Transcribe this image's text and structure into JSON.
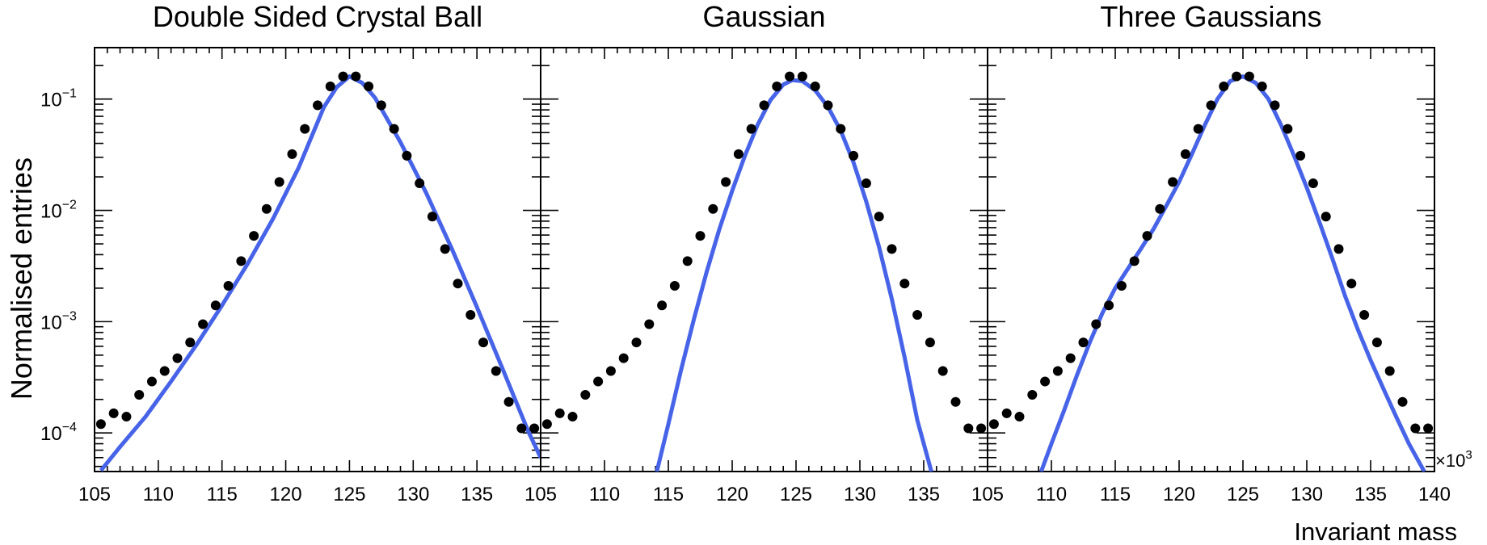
{
  "colors": {
    "fit": "#4763e8",
    "points": "#000000",
    "frame": "#000000"
  },
  "axes": {
    "ylabel": "Normalised entries",
    "xlabel": "Invariant mass",
    "x_multiplier_text": "×10",
    "x_multiplier_exp": "3",
    "xlim": [
      105,
      140
    ],
    "ylim": [
      4.5e-05,
      0.29
    ],
    "yscale": "log",
    "ytick_base": "10",
    "yticks": [
      {
        "value": 0.0001,
        "exp": "−4"
      },
      {
        "value": 0.001,
        "exp": "−3"
      },
      {
        "value": 0.01,
        "exp": "−2"
      },
      {
        "value": 0.1,
        "exp": "−1"
      }
    ],
    "xtick_labels_first_panels": [
      "105",
      "110",
      "115",
      "120",
      "125",
      "130",
      "135"
    ],
    "xtick_labels_last_panel": [
      "105",
      "110",
      "115",
      "120",
      "125",
      "130",
      "135",
      "140"
    ]
  },
  "chart_data": [
    {
      "type": "scatter",
      "title": "Double Sided Crystal Ball",
      "series": [
        {
          "kind": "points",
          "x": [
            105.5,
            106.5,
            107.5,
            108.5,
            109.5,
            110.5,
            111.5,
            112.5,
            113.5,
            114.5,
            115.5,
            116.5,
            117.5,
            118.5,
            119.5,
            120.5,
            121.5,
            122.5,
            123.5,
            124.5,
            125.5,
            126.5,
            127.5,
            128.5,
            129.5,
            130.5,
            131.5,
            132.5,
            133.5,
            134.5,
            135.5,
            136.5,
            137.5,
            138.5,
            139.5
          ],
          "y": [
            0.00012,
            0.00015,
            0.00014,
            0.00022,
            0.00029,
            0.00036,
            0.00047,
            0.00065,
            0.00095,
            0.0014,
            0.0021,
            0.0035,
            0.0059,
            0.0103,
            0.018,
            0.032,
            0.054,
            0.088,
            0.13,
            0.16,
            0.16,
            0.13,
            0.088,
            0.054,
            0.031,
            0.0175,
            0.0088,
            0.0045,
            0.0022,
            0.00115,
            0.00065,
            0.00036,
            0.00019,
            0.00011,
            0.00011
          ]
        },
        {
          "kind": "fit",
          "model": "double-sided crystal ball",
          "x": [
            105.5,
            107,
            109,
            111,
            113,
            115,
            117,
            119,
            121,
            123,
            124,
            125,
            126,
            127,
            129,
            131,
            133,
            135,
            137,
            139,
            140
          ],
          "y": [
            4.6e-05,
            7.5e-05,
            0.00014,
            0.00029,
            0.00062,
            0.0014,
            0.0033,
            0.0084,
            0.024,
            0.085,
            0.128,
            0.16,
            0.14,
            0.103,
            0.041,
            0.0145,
            0.0046,
            0.00135,
            0.00038,
            0.000105,
            6e-05
          ]
        }
      ]
    },
    {
      "type": "scatter",
      "title": "Gaussian",
      "series": [
        {
          "kind": "points",
          "x": [
            105.5,
            106.5,
            107.5,
            108.5,
            109.5,
            110.5,
            111.5,
            112.5,
            113.5,
            114.5,
            115.5,
            116.5,
            117.5,
            118.5,
            119.5,
            120.5,
            121.5,
            122.5,
            123.5,
            124.5,
            125.5,
            126.5,
            127.5,
            128.5,
            129.5,
            130.5,
            131.5,
            132.5,
            133.5,
            134.5,
            135.5,
            136.5,
            137.5,
            138.5,
            139.5
          ],
          "y": [
            0.00012,
            0.00015,
            0.00014,
            0.00022,
            0.00029,
            0.00036,
            0.00047,
            0.00065,
            0.00095,
            0.0014,
            0.0021,
            0.0035,
            0.0059,
            0.0103,
            0.018,
            0.032,
            0.054,
            0.088,
            0.13,
            0.16,
            0.16,
            0.13,
            0.088,
            0.054,
            0.031,
            0.0175,
            0.0088,
            0.0045,
            0.0022,
            0.00115,
            0.00065,
            0.00036,
            0.00019,
            0.00011,
            0.00011
          ]
        },
        {
          "kind": "fit",
          "model": "gaussian",
          "x": [
            114.1,
            115,
            116,
            117,
            118,
            119,
            120,
            121,
            122,
            123,
            124,
            124.7,
            125.5,
            126.5,
            127.5,
            128.5,
            129.5,
            130.5,
            131.5,
            132.5,
            133.5,
            134.5,
            135.6
          ],
          "y": [
            4.5e-05,
            0.00012,
            0.00037,
            0.00105,
            0.0028,
            0.0068,
            0.015,
            0.031,
            0.059,
            0.098,
            0.135,
            0.148,
            0.145,
            0.12,
            0.085,
            0.052,
            0.027,
            0.012,
            0.0047,
            0.0016,
            0.00048,
            0.00013,
            4.5e-05
          ]
        }
      ]
    },
    {
      "type": "scatter",
      "title": "Three Gaussians",
      "series": [
        {
          "kind": "points",
          "x": [
            105.5,
            106.5,
            107.5,
            108.5,
            109.5,
            110.5,
            111.5,
            112.5,
            113.5,
            114.5,
            115.5,
            116.5,
            117.5,
            118.5,
            119.5,
            120.5,
            121.5,
            122.5,
            123.5,
            124.5,
            125.5,
            126.5,
            127.5,
            128.5,
            129.5,
            130.5,
            131.5,
            132.5,
            133.5,
            134.5,
            135.5,
            136.5,
            137.5,
            138.5,
            139.5
          ],
          "y": [
            0.00012,
            0.00015,
            0.00014,
            0.00022,
            0.00029,
            0.00036,
            0.00047,
            0.00065,
            0.00095,
            0.0014,
            0.0021,
            0.0035,
            0.0059,
            0.0103,
            0.018,
            0.032,
            0.054,
            0.088,
            0.13,
            0.16,
            0.16,
            0.13,
            0.088,
            0.054,
            0.031,
            0.0175,
            0.0088,
            0.0045,
            0.0022,
            0.00115,
            0.00065,
            0.00036,
            0.00019,
            0.00011,
            0.00011
          ]
        },
        {
          "kind": "fit",
          "model": "three gaussians",
          "x": [
            109.2,
            110,
            111,
            112,
            113,
            114,
            115,
            116,
            117,
            118,
            119,
            120,
            121,
            122,
            123,
            124,
            125,
            126,
            127,
            128,
            129,
            130,
            131,
            132,
            133,
            134,
            135,
            136,
            137,
            138,
            139.2
          ],
          "y": [
            4.5e-05,
            8e-05,
            0.00016,
            0.00033,
            0.00065,
            0.0012,
            0.002,
            0.003,
            0.0045,
            0.0068,
            0.011,
            0.018,
            0.032,
            0.058,
            0.1,
            0.145,
            0.16,
            0.14,
            0.1,
            0.058,
            0.031,
            0.016,
            0.0078,
            0.0037,
            0.0017,
            0.00085,
            0.00045,
            0.00025,
            0.00014,
            8e-05,
            4.5e-05
          ]
        }
      ]
    }
  ]
}
